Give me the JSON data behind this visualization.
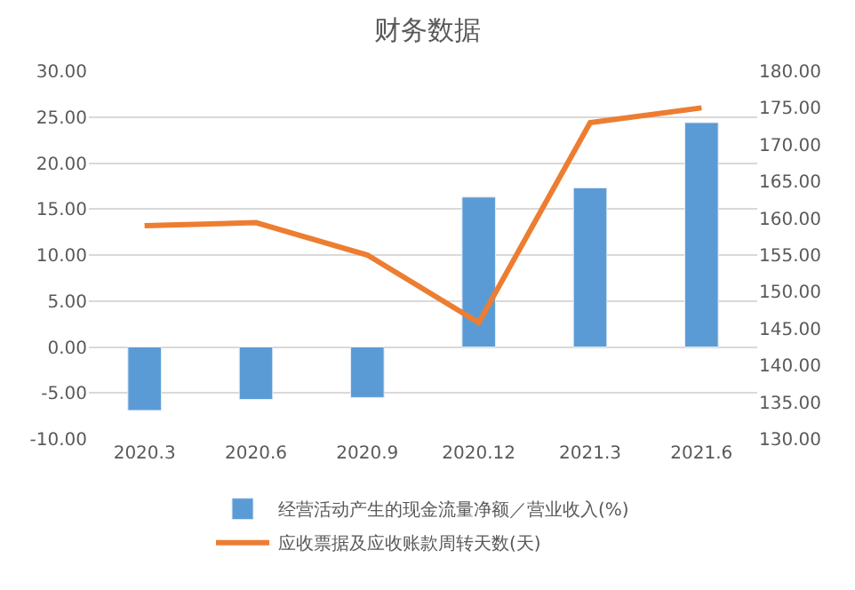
{
  "chart_data": {
    "type": "bar",
    "title": "财务数据",
    "categories": [
      "2020.3",
      "2020.6",
      "2020.9",
      "2020.12",
      "2021.3",
      "2021.6"
    ],
    "series": [
      {
        "name": "经营活动产生的现金流量净额／营业收入(%)",
        "color": "#5b9bd5",
        "values": [
          -6.9,
          -5.7,
          -5.5,
          16.3,
          17.3,
          24.4
        ]
      },
      {
        "name": "应收票据及应收账款周转天数(天)",
        "type": "line",
        "axis": "y2",
        "color": "#ed7d31",
        "values": [
          159.0,
          159.4,
          155.0,
          145.8,
          173.0,
          175.0
        ]
      }
    ],
    "ylim": [
      -10,
      30
    ],
    "yticks": [
      {
        "value": -10,
        "label": "-10.00"
      },
      {
        "value": -5,
        "label": "-5.00"
      },
      {
        "value": 0,
        "label": "0.00"
      },
      {
        "value": 5,
        "label": "5.00"
      },
      {
        "value": 10,
        "label": "10.00"
      },
      {
        "value": 15,
        "label": "15.00"
      },
      {
        "value": 20,
        "label": "20.00"
      },
      {
        "value": 25,
        "label": "25.00"
      },
      {
        "value": 30,
        "label": "30.00"
      }
    ],
    "y2lim": [
      130,
      180
    ],
    "y2ticks": [
      {
        "value": 130,
        "label": "130.00"
      },
      {
        "value": 135,
        "label": "135.00"
      },
      {
        "value": 140,
        "label": "140.00"
      },
      {
        "value": 145,
        "label": "145.00"
      },
      {
        "value": 150,
        "label": "150.00"
      },
      {
        "value": 155,
        "label": "155.00"
      },
      {
        "value": 160,
        "label": "160.00"
      },
      {
        "value": 165,
        "label": "165.00"
      },
      {
        "value": 170,
        "label": "170.00"
      },
      {
        "value": 175,
        "label": "175.00"
      },
      {
        "value": 180,
        "label": "180.00"
      }
    ],
    "grid": "y",
    "legend": "bottom",
    "marker": "none",
    "line_style": "solid"
  }
}
